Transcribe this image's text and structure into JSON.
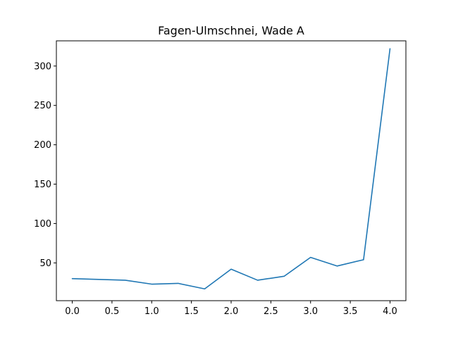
{
  "chart_data": {
    "type": "line",
    "title": "Fagen-Ulmschnei, Wade A",
    "xlabel": "",
    "ylabel": "",
    "xlim": [
      -0.2,
      4.2
    ],
    "ylim": [
      2,
      332
    ],
    "grid": false,
    "x_ticks": [
      0.0,
      0.5,
      1.0,
      1.5,
      2.0,
      2.5,
      3.0,
      3.5,
      4.0
    ],
    "x_tick_labels": [
      "0.0",
      "0.5",
      "1.0",
      "1.5",
      "2.0",
      "2.5",
      "3.0",
      "3.5",
      "4.0"
    ],
    "y_ticks": [
      50,
      100,
      150,
      200,
      250,
      300
    ],
    "y_tick_labels": [
      "50",
      "100",
      "150",
      "200",
      "250",
      "300"
    ],
    "series": [
      {
        "color": "#1f77b4",
        "x": [
          0.0,
          0.3333,
          0.6667,
          1.0,
          1.3333,
          1.6667,
          2.0,
          2.3333,
          2.6667,
          3.0,
          3.3333,
          3.6667,
          4.0
        ],
        "y": [
          30,
          29,
          28,
          23,
          24,
          17,
          42,
          28,
          33,
          57,
          46,
          54,
          322
        ]
      }
    ]
  }
}
